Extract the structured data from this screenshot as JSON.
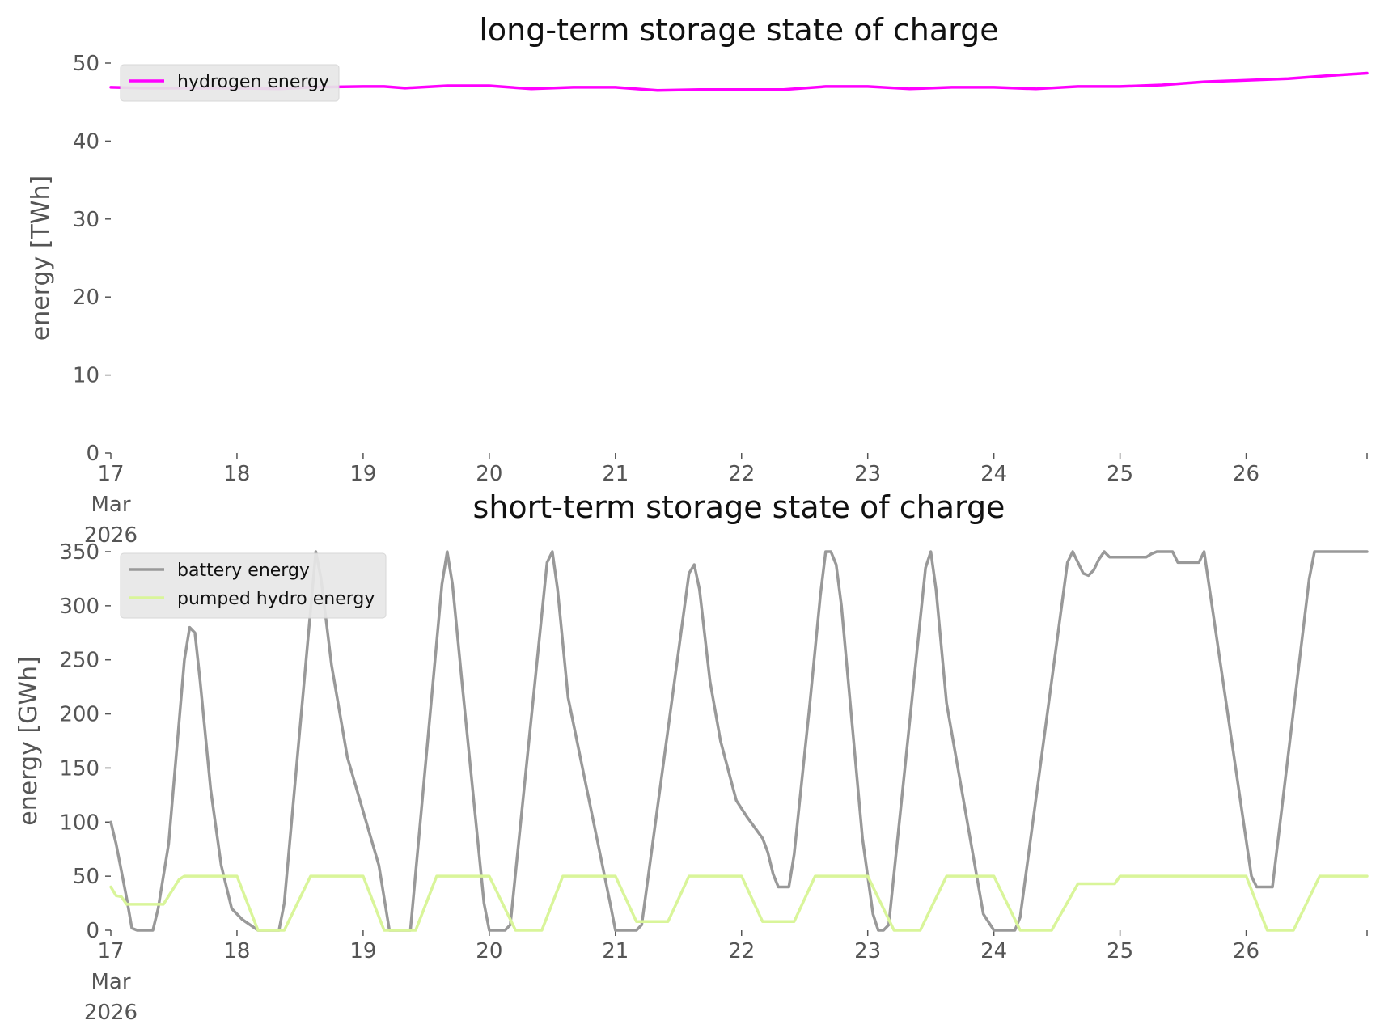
{
  "chart_data": [
    {
      "type": "line",
      "title": "long-term storage state of charge",
      "xlabel": "",
      "ylabel": "energy [TWh]",
      "xlim": [
        "2026-03-17T00:00",
        "2026-03-26T23:00"
      ],
      "ylim": [
        0,
        50
      ],
      "yticks": [
        "0",
        "10",
        "20",
        "30",
        "40",
        "50"
      ],
      "xticks": [
        {
          "value": "2026-03-17",
          "lines": [
            "17",
            "Mar",
            "2026"
          ]
        },
        {
          "value": "2026-03-18",
          "lines": [
            "18"
          ]
        },
        {
          "value": "2026-03-19",
          "lines": [
            "19"
          ]
        },
        {
          "value": "2026-03-20",
          "lines": [
            "20"
          ]
        },
        {
          "value": "2026-03-21",
          "lines": [
            "21"
          ]
        },
        {
          "value": "2026-03-22",
          "lines": [
            "22"
          ]
        },
        {
          "value": "2026-03-23",
          "lines": [
            "23"
          ]
        },
        {
          "value": "2026-03-24",
          "lines": [
            "24"
          ]
        },
        {
          "value": "2026-03-25",
          "lines": [
            "25"
          ]
        },
        {
          "value": "2026-03-26",
          "lines": [
            "26"
          ]
        }
      ],
      "grid": false,
      "legend_position": "top-left",
      "series": [
        {
          "name": "hydrogen energy",
          "color": "#ff00ff",
          "points": [
            [
              "2026-03-17T00:00",
              46.9
            ],
            [
              "2026-03-17T06:00",
              46.8
            ],
            [
              "2026-03-17T12:00",
              46.8
            ],
            [
              "2026-03-18T00:00",
              46.8
            ],
            [
              "2026-03-18T08:00",
              46.7
            ],
            [
              "2026-03-18T14:00",
              46.9
            ],
            [
              "2026-03-19T00:00",
              47.0
            ],
            [
              "2026-03-19T04:00",
              47.0
            ],
            [
              "2026-03-19T08:00",
              46.8
            ],
            [
              "2026-03-19T16:00",
              47.1
            ],
            [
              "2026-03-20T00:00",
              47.1
            ],
            [
              "2026-03-20T08:00",
              46.7
            ],
            [
              "2026-03-20T16:00",
              46.9
            ],
            [
              "2026-03-21T00:00",
              46.9
            ],
            [
              "2026-03-21T08:00",
              46.5
            ],
            [
              "2026-03-21T16:00",
              46.6
            ],
            [
              "2026-03-22T00:00",
              46.6
            ],
            [
              "2026-03-22T08:00",
              46.6
            ],
            [
              "2026-03-22T16:00",
              47.0
            ],
            [
              "2026-03-23T00:00",
              47.0
            ],
            [
              "2026-03-23T08:00",
              46.7
            ],
            [
              "2026-03-23T16:00",
              46.9
            ],
            [
              "2026-03-24T00:00",
              46.9
            ],
            [
              "2026-03-24T08:00",
              46.7
            ],
            [
              "2026-03-24T16:00",
              47.0
            ],
            [
              "2026-03-25T00:00",
              47.0
            ],
            [
              "2026-03-25T08:00",
              47.2
            ],
            [
              "2026-03-25T16:00",
              47.6
            ],
            [
              "2026-03-26T00:00",
              47.8
            ],
            [
              "2026-03-26T08:00",
              48.0
            ],
            [
              "2026-03-26T16:00",
              48.4
            ],
            [
              "2026-03-26T23:00",
              48.7
            ]
          ]
        }
      ]
    },
    {
      "type": "line",
      "title": "short-term storage state of charge",
      "xlabel": "",
      "ylabel": "energy [GWh]",
      "xlim": [
        "2026-03-17T00:00",
        "2026-03-26T23:00"
      ],
      "ylim": [
        0,
        350
      ],
      "yticks": [
        "0",
        "50",
        "100",
        "150",
        "200",
        "250",
        "300",
        "350"
      ],
      "xticks": [
        {
          "value": "2026-03-17",
          "lines": [
            "17",
            "Mar",
            "2026"
          ]
        },
        {
          "value": "2026-03-18",
          "lines": [
            "18"
          ]
        },
        {
          "value": "2026-03-19",
          "lines": [
            "19"
          ]
        },
        {
          "value": "2026-03-20",
          "lines": [
            "20"
          ]
        },
        {
          "value": "2026-03-21",
          "lines": [
            "21"
          ]
        },
        {
          "value": "2026-03-22",
          "lines": [
            "22"
          ]
        },
        {
          "value": "2026-03-23",
          "lines": [
            "23"
          ]
        },
        {
          "value": "2026-03-24",
          "lines": [
            "24"
          ]
        },
        {
          "value": "2026-03-25",
          "lines": [
            "25"
          ]
        },
        {
          "value": "2026-03-26",
          "lines": [
            "26"
          ]
        }
      ],
      "grid": false,
      "legend_position": "top-left",
      "series": [
        {
          "name": "battery energy",
          "color": "#999999",
          "points": [
            [
              "2026-03-17T00:00",
              100
            ],
            [
              "2026-03-17T01:00",
              80
            ],
            [
              "2026-03-17T02:00",
              55
            ],
            [
              "2026-03-17T03:00",
              30
            ],
            [
              "2026-03-17T04:00",
              2
            ],
            [
              "2026-03-17T05:00",
              0
            ],
            [
              "2026-03-17T08:00",
              0
            ],
            [
              "2026-03-17T09:00",
              20
            ],
            [
              "2026-03-17T11:00",
              80
            ],
            [
              "2026-03-17T14:00",
              250
            ],
            [
              "2026-03-17T15:00",
              280
            ],
            [
              "2026-03-17T16:00",
              275
            ],
            [
              "2026-03-17T17:00",
              230
            ],
            [
              "2026-03-17T19:00",
              130
            ],
            [
              "2026-03-17T21:00",
              60
            ],
            [
              "2026-03-17T23:00",
              20
            ],
            [
              "2026-03-18T01:00",
              10
            ],
            [
              "2026-03-18T04:00",
              0
            ],
            [
              "2026-03-18T08:00",
              0
            ],
            [
              "2026-03-18T09:00",
              25
            ],
            [
              "2026-03-18T15:00",
              350
            ],
            [
              "2026-03-18T16:00",
              325
            ],
            [
              "2026-03-18T18:00",
              245
            ],
            [
              "2026-03-18T21:00",
              160
            ],
            [
              "2026-03-19T00:00",
              110
            ],
            [
              "2026-03-19T03:00",
              60
            ],
            [
              "2026-03-19T05:00",
              0
            ],
            [
              "2026-03-19T09:00",
              0
            ],
            [
              "2026-03-19T15:00",
              320
            ],
            [
              "2026-03-19T16:00",
              350
            ],
            [
              "2026-03-19T17:00",
              320
            ],
            [
              "2026-03-19T19:00",
              220
            ],
            [
              "2026-03-19T23:00",
              25
            ],
            [
              "2026-03-20T00:00",
              0
            ],
            [
              "2026-03-20T03:00",
              0
            ],
            [
              "2026-03-20T04:00",
              5
            ],
            [
              "2026-03-20T11:00",
              340
            ],
            [
              "2026-03-20T12:00",
              350
            ],
            [
              "2026-03-20T13:00",
              315
            ],
            [
              "2026-03-20T15:00",
              215
            ],
            [
              "2026-03-20T23:00",
              25
            ],
            [
              "2026-03-21T00:00",
              0
            ],
            [
              "2026-03-21T04:00",
              0
            ],
            [
              "2026-03-21T05:00",
              5
            ],
            [
              "2026-03-21T14:00",
              330
            ],
            [
              "2026-03-21T15:00",
              338
            ],
            [
              "2026-03-21T16:00",
              315
            ],
            [
              "2026-03-21T18:00",
              230
            ],
            [
              "2026-03-21T20:00",
              175
            ],
            [
              "2026-03-21T23:00",
              120
            ],
            [
              "2026-03-22T01:00",
              105
            ],
            [
              "2026-03-22T04:00",
              85
            ],
            [
              "2026-03-22T05:00",
              72
            ],
            [
              "2026-03-22T06:00",
              52
            ],
            [
              "2026-03-22T07:00",
              40
            ],
            [
              "2026-03-22T09:00",
              40
            ],
            [
              "2026-03-22T10:00",
              70
            ],
            [
              "2026-03-22T13:00",
              210
            ],
            [
              "2026-03-22T15:00",
              310
            ],
            [
              "2026-03-22T16:00",
              350
            ],
            [
              "2026-03-22T17:00",
              350
            ],
            [
              "2026-03-22T18:00",
              338
            ],
            [
              "2026-03-22T19:00",
              300
            ],
            [
              "2026-03-22T23:00",
              85
            ],
            [
              "2026-03-23T01:00",
              15
            ],
            [
              "2026-03-23T02:00",
              0
            ],
            [
              "2026-03-23T03:00",
              0
            ],
            [
              "2026-03-23T04:00",
              5
            ],
            [
              "2026-03-23T11:00",
              335
            ],
            [
              "2026-03-23T12:00",
              350
            ],
            [
              "2026-03-23T13:00",
              315
            ],
            [
              "2026-03-23T15:00",
              210
            ],
            [
              "2026-03-23T22:00",
              15
            ],
            [
              "2026-03-24T00:00",
              0
            ],
            [
              "2026-03-24T04:00",
              0
            ],
            [
              "2026-03-24T05:00",
              12
            ],
            [
              "2026-03-24T14:00",
              340
            ],
            [
              "2026-03-24T15:00",
              350
            ],
            [
              "2026-03-24T16:00",
              340
            ],
            [
              "2026-03-24T17:00",
              330
            ],
            [
              "2026-03-24T18:00",
              328
            ],
            [
              "2026-03-24T19:00",
              333
            ],
            [
              "2026-03-24T20:00",
              343
            ],
            [
              "2026-03-24T21:00",
              350
            ],
            [
              "2026-03-24T22:00",
              345
            ],
            [
              "2026-03-25T05:00",
              345
            ],
            [
              "2026-03-25T06:00",
              348
            ],
            [
              "2026-03-25T07:00",
              350
            ],
            [
              "2026-03-25T09:00",
              350
            ],
            [
              "2026-03-25T10:00",
              350
            ],
            [
              "2026-03-25T11:00",
              340
            ],
            [
              "2026-03-25T15:00",
              340
            ],
            [
              "2026-03-25T16:00",
              350
            ],
            [
              "2026-03-26T01:00",
              50
            ],
            [
              "2026-03-26T02:00",
              40
            ],
            [
              "2026-03-26T05:00",
              40
            ],
            [
              "2026-03-26T12:00",
              325
            ],
            [
              "2026-03-26T13:00",
              350
            ],
            [
              "2026-03-26T23:00",
              350
            ]
          ]
        },
        {
          "name": "pumped hydro energy",
          "color": "#d9f59a",
          "points": [
            [
              "2026-03-17T00:00",
              40
            ],
            [
              "2026-03-17T01:00",
              32
            ],
            [
              "2026-03-17T02:00",
              31
            ],
            [
              "2026-03-17T03:00",
              24
            ],
            [
              "2026-03-17T10:00",
              24
            ],
            [
              "2026-03-17T13:00",
              47
            ],
            [
              "2026-03-17T14:00",
              50
            ],
            [
              "2026-03-18T00:00",
              50
            ],
            [
              "2026-03-18T04:00",
              0
            ],
            [
              "2026-03-18T09:00",
              0
            ],
            [
              "2026-03-18T14:00",
              50
            ],
            [
              "2026-03-19T00:00",
              50
            ],
            [
              "2026-03-19T04:00",
              0
            ],
            [
              "2026-03-19T10:00",
              0
            ],
            [
              "2026-03-19T14:00",
              50
            ],
            [
              "2026-03-20T00:00",
              50
            ],
            [
              "2026-03-20T05:00",
              0
            ],
            [
              "2026-03-20T10:00",
              0
            ],
            [
              "2026-03-20T14:00",
              50
            ],
            [
              "2026-03-21T00:00",
              50
            ],
            [
              "2026-03-21T04:00",
              8
            ],
            [
              "2026-03-21T10:00",
              8
            ],
            [
              "2026-03-21T14:00",
              50
            ],
            [
              "2026-03-22T00:00",
              50
            ],
            [
              "2026-03-22T04:00",
              8
            ],
            [
              "2026-03-22T10:00",
              8
            ],
            [
              "2026-03-22T14:00",
              50
            ],
            [
              "2026-03-23T00:00",
              50
            ],
            [
              "2026-03-23T05:00",
              0
            ],
            [
              "2026-03-23T10:00",
              0
            ],
            [
              "2026-03-23T15:00",
              50
            ],
            [
              "2026-03-24T00:00",
              50
            ],
            [
              "2026-03-24T05:00",
              0
            ],
            [
              "2026-03-24T11:00",
              0
            ],
            [
              "2026-03-24T16:00",
              43
            ],
            [
              "2026-03-24T23:00",
              43
            ],
            [
              "2026-03-25T00:00",
              50
            ],
            [
              "2026-03-26T00:00",
              50
            ],
            [
              "2026-03-26T04:00",
              0
            ],
            [
              "2026-03-26T09:00",
              0
            ],
            [
              "2026-03-26T14:00",
              50
            ],
            [
              "2026-03-26T23:00",
              50
            ]
          ]
        }
      ]
    }
  ]
}
